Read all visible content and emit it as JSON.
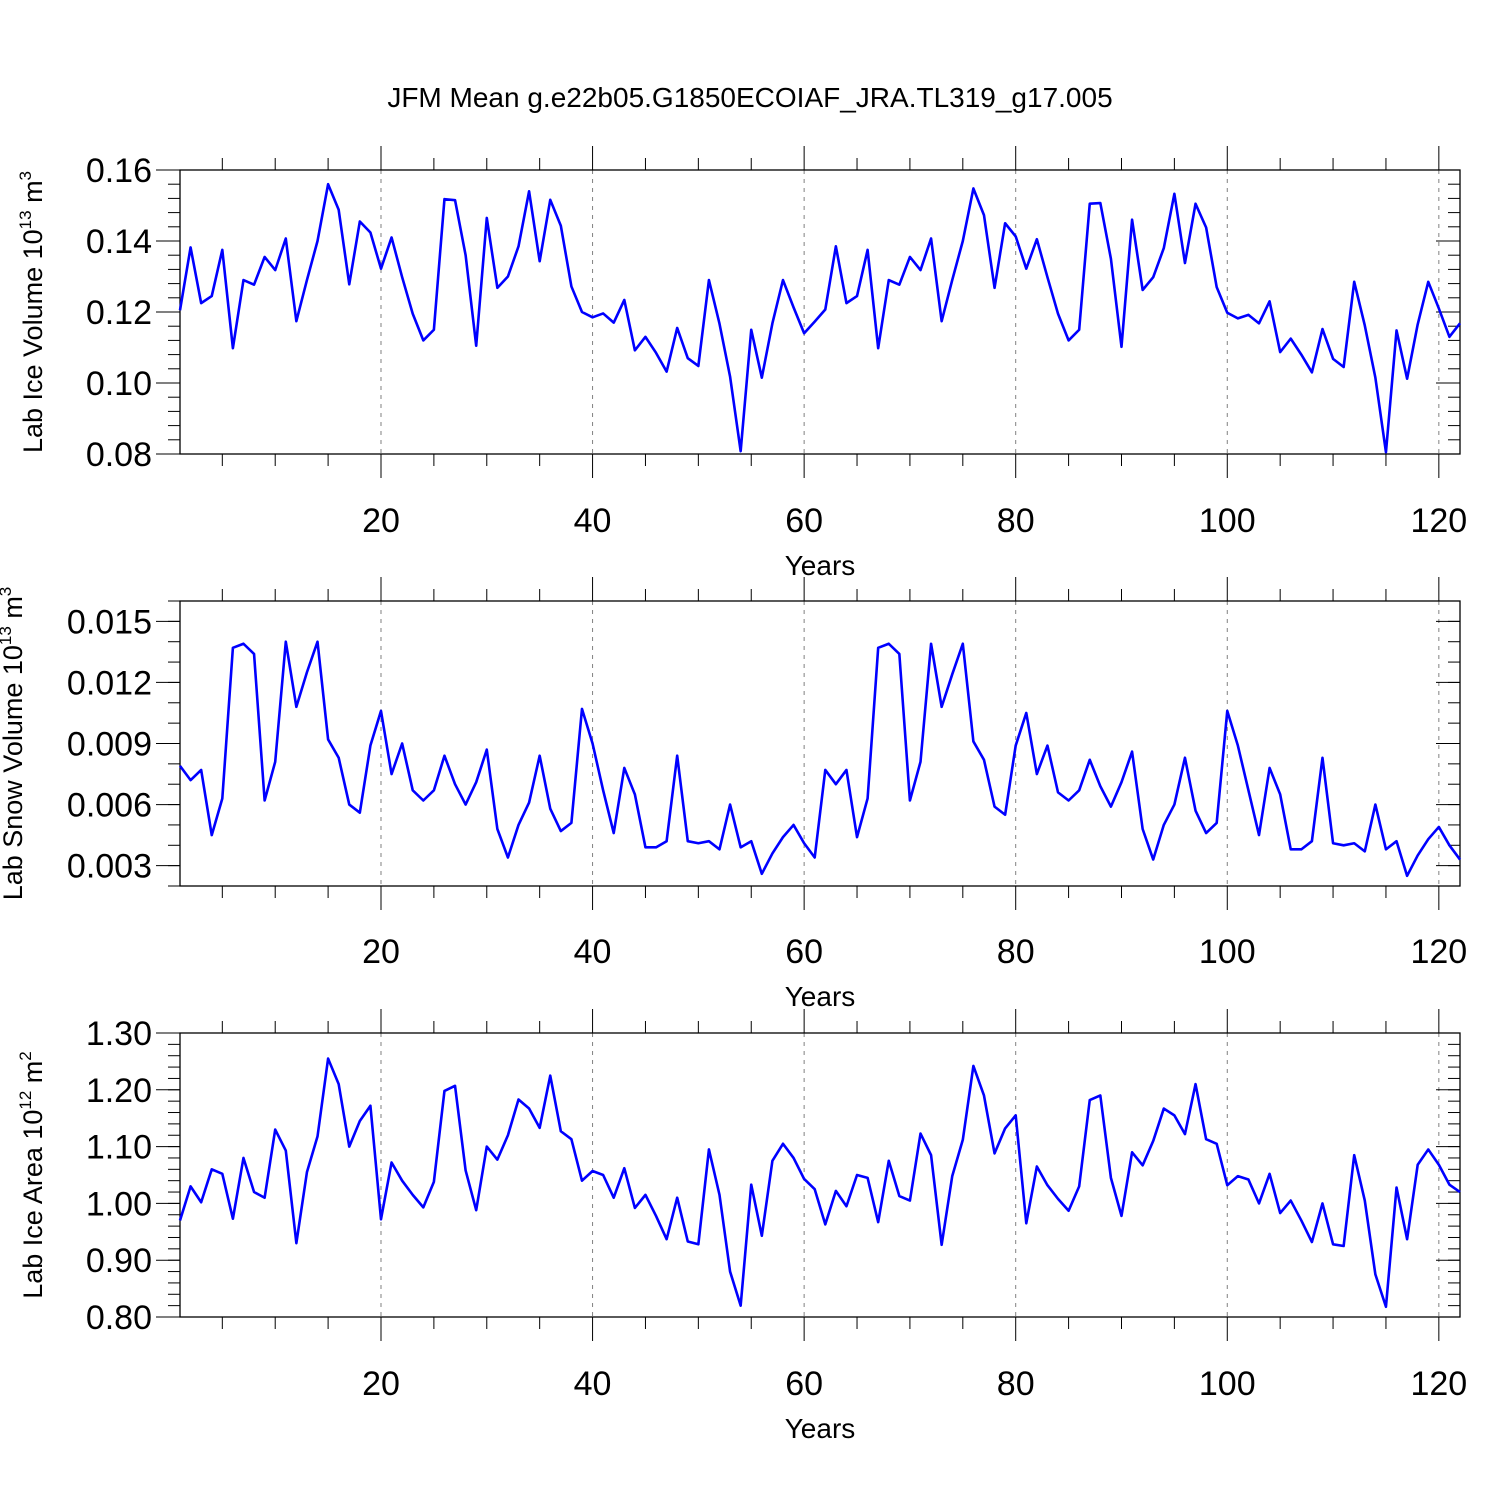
{
  "figure": {
    "title": "JFM Mean g.e22b05.G1850ECOIAF_JRA.TL319_g17.005",
    "line_color": "#0000ff",
    "grid_color": "#808080",
    "axis_color": "#000000"
  },
  "chart_data": [
    {
      "type": "line",
      "title": "JFM Mean g.e22b05.G1850ECOIAF_JRA.TL319_g17.005",
      "ylabel": "Lab Ice Volume",
      "ylabel_unit_base": "10",
      "ylabel_unit_exp": "13",
      "ylabel_unit_suffix": "m",
      "ylabel_unit_suffix_exp": "3",
      "xlabel": "Years",
      "xlim": [
        1,
        122
      ],
      "ylim": [
        0.08,
        0.16
      ],
      "y_ticks": [
        "0.08",
        "0.10",
        "0.12",
        "0.14",
        "0.16"
      ],
      "x_ticks": [
        "20",
        "40",
        "60",
        "80",
        "100",
        "120"
      ],
      "grid": "vertical dashed at major x ticks",
      "series": [
        {
          "values": [
            0.1205,
            0.1382,
            0.1225,
            0.1245,
            0.1375,
            0.1098,
            0.129,
            0.1277,
            0.1355,
            0.1318,
            0.1407,
            0.1174,
            0.129,
            0.14,
            0.156,
            0.1488,
            0.1278,
            0.1455,
            0.1424,
            0.1322,
            0.141,
            0.1298,
            0.1195,
            0.112,
            0.115,
            0.1518,
            0.1515,
            0.136,
            0.1105,
            0.1465,
            0.1268,
            0.13,
            0.1385,
            0.154,
            0.1343,
            0.1516,
            0.1443,
            0.1272,
            0.12,
            0.1185,
            0.1196,
            0.117,
            0.1234,
            0.1092,
            0.113,
            0.1085,
            0.1032,
            0.1155,
            0.107,
            0.1048,
            0.129,
            0.1167,
            0.1018,
            0.0808,
            0.115,
            0.1015,
            0.1168,
            0.129,
            0.1213,
            0.114,
            0.1173,
            0.1207,
            0.1385,
            0.1225,
            0.1245,
            0.1375,
            0.1098,
            0.129,
            0.1277,
            0.1355,
            0.1318,
            0.1407,
            0.1174,
            0.129,
            0.14,
            0.1548,
            0.1473,
            0.1268,
            0.145,
            0.1413,
            0.1322,
            0.1405,
            0.1298,
            0.1195,
            0.112,
            0.115,
            0.1505,
            0.1507,
            0.135,
            0.1102,
            0.146,
            0.1262,
            0.1298,
            0.138,
            0.1533,
            0.1338,
            0.1505,
            0.1438,
            0.127,
            0.1198,
            0.1182,
            0.1192,
            0.1168,
            0.123,
            0.1087,
            0.1125,
            0.108,
            0.103,
            0.1152,
            0.1068,
            0.1045,
            0.1285,
            0.1162,
            0.1015,
            0.0805,
            0.1148,
            0.1012,
            0.1165,
            0.1285,
            0.121,
            0.113,
            0.1168
          ]
        }
      ]
    },
    {
      "type": "line",
      "ylabel": "Lab Snow Volume",
      "ylabel_unit_base": "10",
      "ylabel_unit_exp": "13",
      "ylabel_unit_suffix": "m",
      "ylabel_unit_suffix_exp": "3",
      "xlabel": "Years",
      "xlim": [
        1,
        122
      ],
      "ylim": [
        0.002,
        0.016
      ],
      "y_ticks": [
        "0.003",
        "0.006",
        "0.009",
        "0.012",
        "0.015"
      ],
      "x_ticks": [
        "20",
        "40",
        "60",
        "80",
        "100",
        "120"
      ],
      "grid": "vertical dashed at major x ticks",
      "series": [
        {
          "values": [
            0.0079,
            0.0072,
            0.0077,
            0.0045,
            0.0063,
            0.0137,
            0.0139,
            0.0134,
            0.0062,
            0.0081,
            0.014,
            0.0108,
            0.0125,
            0.014,
            0.0092,
            0.0083,
            0.006,
            0.0056,
            0.0089,
            0.0106,
            0.0075,
            0.009,
            0.0067,
            0.0062,
            0.0067,
            0.0084,
            0.007,
            0.006,
            0.0071,
            0.0087,
            0.0048,
            0.0034,
            0.005,
            0.0061,
            0.0084,
            0.0058,
            0.0047,
            0.0051,
            0.0107,
            0.009,
            0.0067,
            0.0046,
            0.0078,
            0.0065,
            0.0039,
            0.0039,
            0.0042,
            0.0084,
            0.0042,
            0.0041,
            0.0042,
            0.0038,
            0.006,
            0.0039,
            0.0042,
            0.0026,
            0.0036,
            0.0044,
            0.005,
            0.0041,
            0.0034,
            0.0077,
            0.007,
            0.0077,
            0.0044,
            0.0063,
            0.0137,
            0.0139,
            0.0134,
            0.0062,
            0.0081,
            0.0139,
            0.0108,
            0.0124,
            0.0139,
            0.0091,
            0.0082,
            0.0059,
            0.0055,
            0.0089,
            0.0105,
            0.0075,
            0.0089,
            0.0066,
            0.0062,
            0.0067,
            0.0082,
            0.0069,
            0.0059,
            0.0071,
            0.0086,
            0.0048,
            0.0033,
            0.005,
            0.006,
            0.0083,
            0.0057,
            0.0046,
            0.0051,
            0.0106,
            0.0089,
            0.0067,
            0.0045,
            0.0078,
            0.0065,
            0.0038,
            0.0038,
            0.0042,
            0.0083,
            0.0041,
            0.004,
            0.0041,
            0.0037,
            0.006,
            0.0038,
            0.0042,
            0.0025,
            0.0035,
            0.0043,
            0.0049,
            0.004,
            0.0033
          ]
        }
      ]
    },
    {
      "type": "line",
      "ylabel": "Lab Ice Area",
      "ylabel_unit_base": "10",
      "ylabel_unit_exp": "12",
      "ylabel_unit_suffix": "m",
      "ylabel_unit_suffix_exp": "2",
      "xlabel": "Years",
      "xlim": [
        1,
        122
      ],
      "ylim": [
        0.8,
        1.3
      ],
      "y_ticks": [
        "0.80",
        "0.90",
        "1.00",
        "1.10",
        "1.20",
        "1.30"
      ],
      "x_ticks": [
        "20",
        "40",
        "60",
        "80",
        "100",
        "120"
      ],
      "grid": "vertical dashed at major x ticks",
      "series": [
        {
          "values": [
            0.97,
            1.03,
            1.002,
            1.06,
            1.052,
            0.973,
            1.08,
            1.02,
            1.01,
            1.13,
            1.093,
            0.93,
            1.055,
            1.118,
            1.255,
            1.21,
            1.1,
            1.145,
            1.172,
            0.972,
            1.072,
            1.04,
            1.015,
            0.993,
            1.038,
            1.198,
            1.207,
            1.058,
            0.988,
            1.1,
            1.077,
            1.12,
            1.183,
            1.167,
            1.133,
            1.225,
            1.127,
            1.113,
            1.04,
            1.057,
            1.05,
            1.01,
            1.062,
            0.992,
            1.015,
            0.978,
            0.937,
            1.01,
            0.933,
            0.928,
            1.095,
            1.015,
            0.88,
            0.82,
            1.033,
            0.943,
            1.075,
            1.105,
            1.08,
            1.043,
            1.025,
            0.963,
            1.022,
            0.995,
            1.05,
            1.045,
            0.967,
            1.075,
            1.013,
            1.005,
            1.123,
            1.085,
            0.927,
            1.048,
            1.112,
            1.242,
            1.19,
            1.088,
            1.132,
            1.155,
            0.965,
            1.065,
            1.032,
            1.008,
            0.987,
            1.03,
            1.182,
            1.19,
            1.045,
            0.978,
            1.09,
            1.067,
            1.11,
            1.167,
            1.155,
            1.122,
            1.21,
            1.113,
            1.105,
            1.032,
            1.048,
            1.042,
            1.0,
            1.052,
            0.983,
            1.005,
            0.97,
            0.932,
            1.0,
            0.928,
            0.925,
            1.085,
            1.005,
            0.875,
            0.818,
            1.028,
            0.937,
            1.068,
            1.095,
            1.068,
            1.033,
            1.02
          ]
        }
      ]
    }
  ]
}
